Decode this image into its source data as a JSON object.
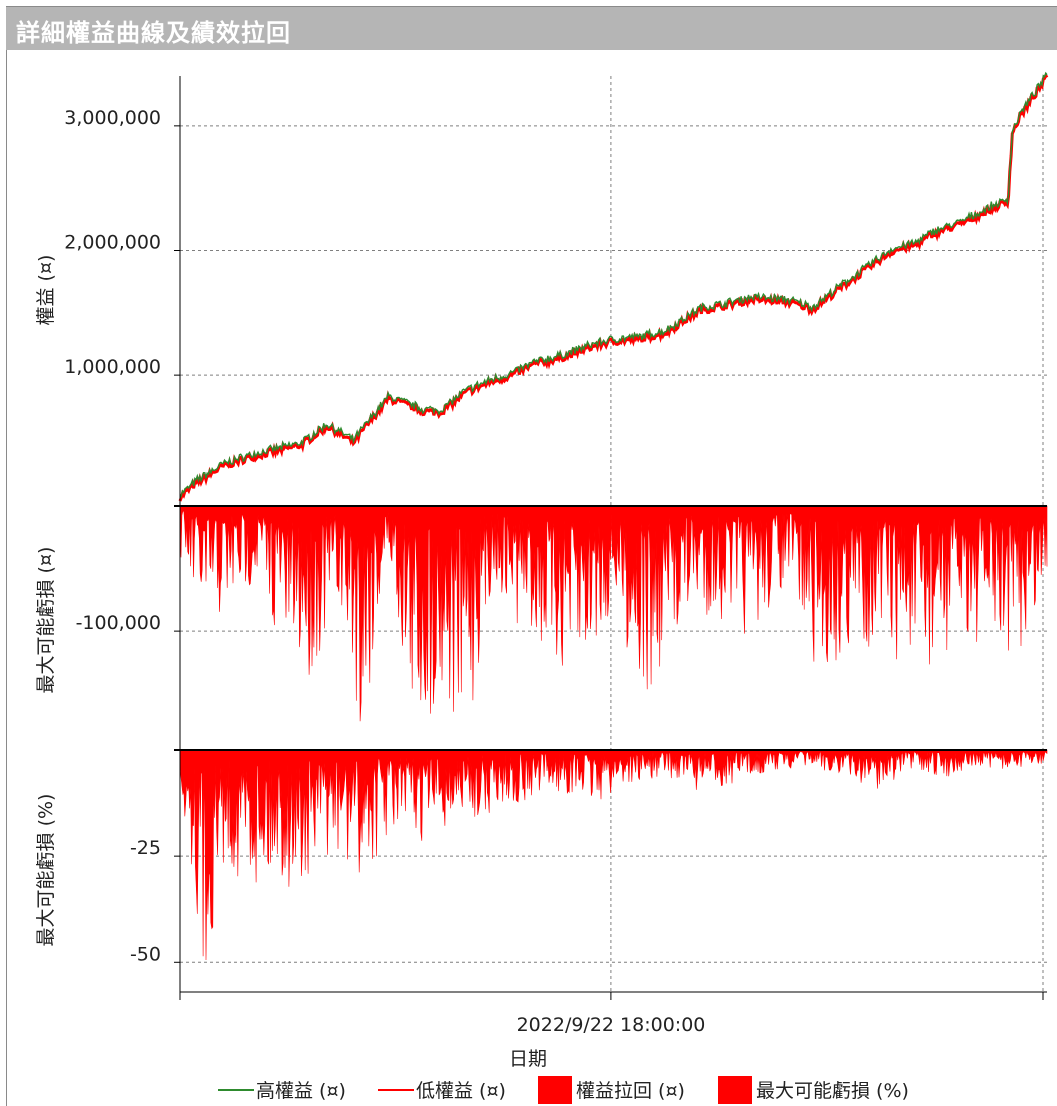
{
  "window": {
    "title": "詳細權益曲線及績效拉回"
  },
  "colors": {
    "high_equity": "#2e8b2e",
    "low_equity": "#ff0000",
    "drawdown": "#ff0000",
    "grid": "#7f7f7f",
    "axis": "#000000"
  },
  "chart_data": [
    {
      "type": "line",
      "panel": "equity",
      "ylabel": "權益 (¤)",
      "yticks": [
        {
          "value": 1000000,
          "label": "1,000,000"
        },
        {
          "value": 2000000,
          "label": "2,000,000"
        },
        {
          "value": 3000000,
          "label": "3,000,000"
        }
      ],
      "ylim": [
        -50000,
        3400000
      ],
      "x": [
        0,
        0.02,
        0.05,
        0.08,
        0.11,
        0.14,
        0.17,
        0.2,
        0.24,
        0.25,
        0.28,
        0.3,
        0.33,
        0.36,
        0.38,
        0.41,
        0.44,
        0.48,
        0.5,
        0.53,
        0.56,
        0.6,
        0.63,
        0.66,
        0.7,
        0.73,
        0.76,
        0.78,
        0.8,
        0.82,
        0.85,
        0.87,
        0.9,
        0.94,
        0.955,
        0.96,
        0.97,
        0.98,
        1.0
      ],
      "series": [
        {
          "name": "高權益 (¤)",
          "values": [
            30000,
            150000,
            280000,
            350000,
            400000,
            450000,
            600000,
            470000,
            820000,
            800000,
            720000,
            710000,
            870000,
            960000,
            1000000,
            1100000,
            1150000,
            1250000,
            1280000,
            1300000,
            1350000,
            1530000,
            1570000,
            1620000,
            1600000,
            1540000,
            1700000,
            1800000,
            1900000,
            2000000,
            2060000,
            2150000,
            2220000,
            2360000,
            2400000,
            2950000,
            3100000,
            3200000,
            3400000
          ]
        },
        {
          "name": "低權益 (¤)",
          "values": [
            20000,
            140000,
            270000,
            340000,
            390000,
            440000,
            590000,
            460000,
            810000,
            790000,
            710000,
            700000,
            860000,
            950000,
            990000,
            1090000,
            1140000,
            1240000,
            1270000,
            1290000,
            1340000,
            1520000,
            1560000,
            1610000,
            1590000,
            1530000,
            1690000,
            1790000,
            1890000,
            1990000,
            2050000,
            2140000,
            2210000,
            2350000,
            2390000,
            2940000,
            3090000,
            3190000,
            3390000
          ]
        }
      ]
    },
    {
      "type": "area",
      "panel": "drawdown_abs",
      "ylabel": "最大可能虧損 (¤)",
      "yticks": [
        {
          "value": -100000,
          "label": "-100,000"
        }
      ],
      "ylim": [
        -195000,
        0
      ],
      "x": [
        0,
        0.03,
        0.06,
        0.09,
        0.12,
        0.15,
        0.18,
        0.21,
        0.24,
        0.27,
        0.3,
        0.33,
        0.36,
        0.39,
        0.42,
        0.46,
        0.5,
        0.54,
        0.58,
        0.62,
        0.66,
        0.7,
        0.74,
        0.78,
        0.82,
        0.86,
        0.9,
        0.94,
        0.98,
        1.0
      ],
      "series": [
        {
          "name": "權益拉回 (¤)",
          "values": [
            -40000,
            -110000,
            -80000,
            -60000,
            -120000,
            -140000,
            -80000,
            -190000,
            -40000,
            -190000,
            -160000,
            -190000,
            -60000,
            -100000,
            -120000,
            -150000,
            -80000,
            -170000,
            -90000,
            -90000,
            -110000,
            -60000,
            -150000,
            -110000,
            -120000,
            -150000,
            -100000,
            -120000,
            -110000,
            -60000
          ]
        }
      ]
    },
    {
      "type": "area",
      "panel": "drawdown_pct",
      "ylabel": "最大可能虧損 (%)",
      "yticks": [
        {
          "value": -25,
          "label": "-25"
        },
        {
          "value": -50,
          "label": "-50"
        }
      ],
      "ylim": [
        -57,
        0
      ],
      "x": [
        0,
        0.015,
        0.03,
        0.05,
        0.08,
        0.11,
        0.14,
        0.17,
        0.21,
        0.24,
        0.27,
        0.3,
        0.33,
        0.36,
        0.4,
        0.44,
        0.48,
        0.52,
        0.56,
        0.6,
        0.64,
        0.68,
        0.72,
        0.76,
        0.8,
        0.84,
        0.88,
        0.92,
        0.96,
        1.0
      ],
      "series": [
        {
          "name": "最大可能虧損 (%)",
          "values": [
            -10,
            -30,
            -57,
            -28,
            -32,
            -30,
            -35,
            -25,
            -32,
            -20,
            -22,
            -20,
            -18,
            -15,
            -12,
            -10,
            -13,
            -8,
            -6,
            -10,
            -8,
            -5,
            -4,
            -6,
            -10,
            -5,
            -7,
            -4,
            -5,
            -3
          ]
        }
      ]
    }
  ],
  "x_axis": {
    "tick_label": "2022/9/22 18:00:00",
    "label": "日期"
  },
  "legend": [
    {
      "label": "高權益 (¤)",
      "kind": "line",
      "color": "#2e8b2e"
    },
    {
      "label": "低權益 (¤)",
      "kind": "line",
      "color": "#ff0000"
    },
    {
      "label": "權益拉回 (¤)",
      "kind": "box",
      "color": "#ff0000"
    },
    {
      "label": "最大可能虧損 (%)",
      "kind": "box",
      "color": "#ff0000"
    }
  ]
}
